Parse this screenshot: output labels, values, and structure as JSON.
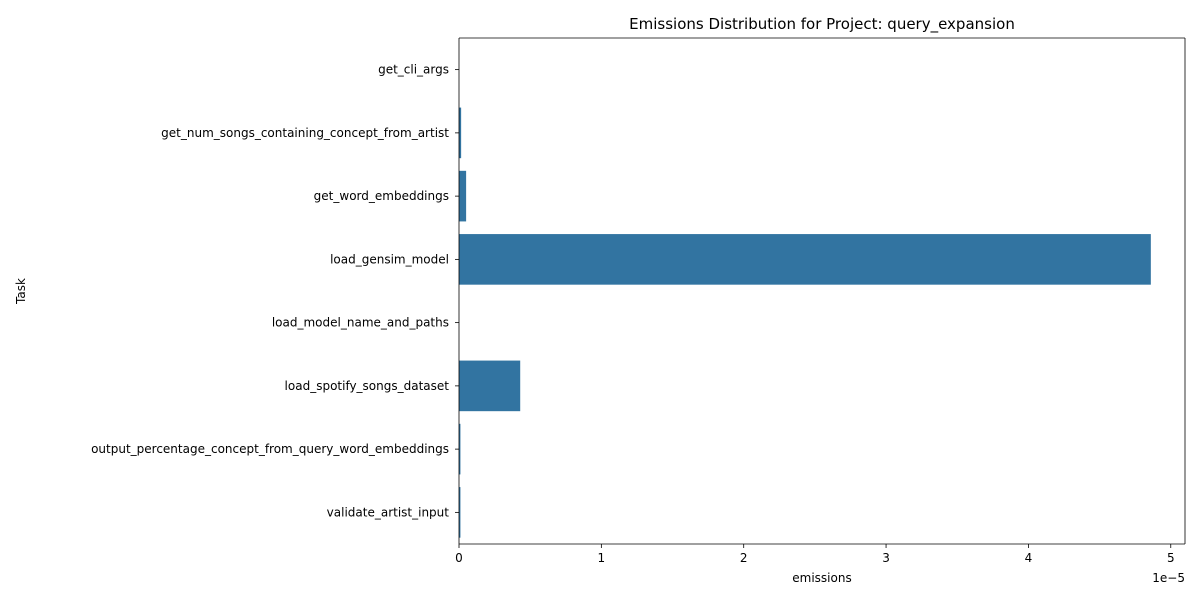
{
  "chart_data": {
    "type": "bar",
    "orientation": "horizontal",
    "title": "Emissions Distribution for Project: query_expansion",
    "xlabel": "emissions",
    "ylabel": "Task",
    "x_offset_label": "1e−5",
    "xlim": [
      0,
      5.1e-05
    ],
    "xticks": [
      0,
      1e-05,
      2e-05,
      3e-05,
      4e-05,
      5e-05
    ],
    "xtick_labels": [
      "0",
      "1",
      "2",
      "3",
      "4",
      "5"
    ],
    "categories": [
      "get_cli_args",
      "get_num_songs_containing_concept_from_artist",
      "get_word_embeddings",
      "load_gensim_model",
      "load_model_name_and_paths",
      "load_spotify_songs_dataset",
      "output_percentage_concept_from_query_word_embeddings",
      "validate_artist_input"
    ],
    "values": [
      0.0,
      1.5e-07,
      5e-07,
      4.86e-05,
      0.0,
      4.3e-06,
      1e-07,
      1e-07
    ],
    "bar_color": "#3274a1",
    "grid": false,
    "legend": "none"
  }
}
